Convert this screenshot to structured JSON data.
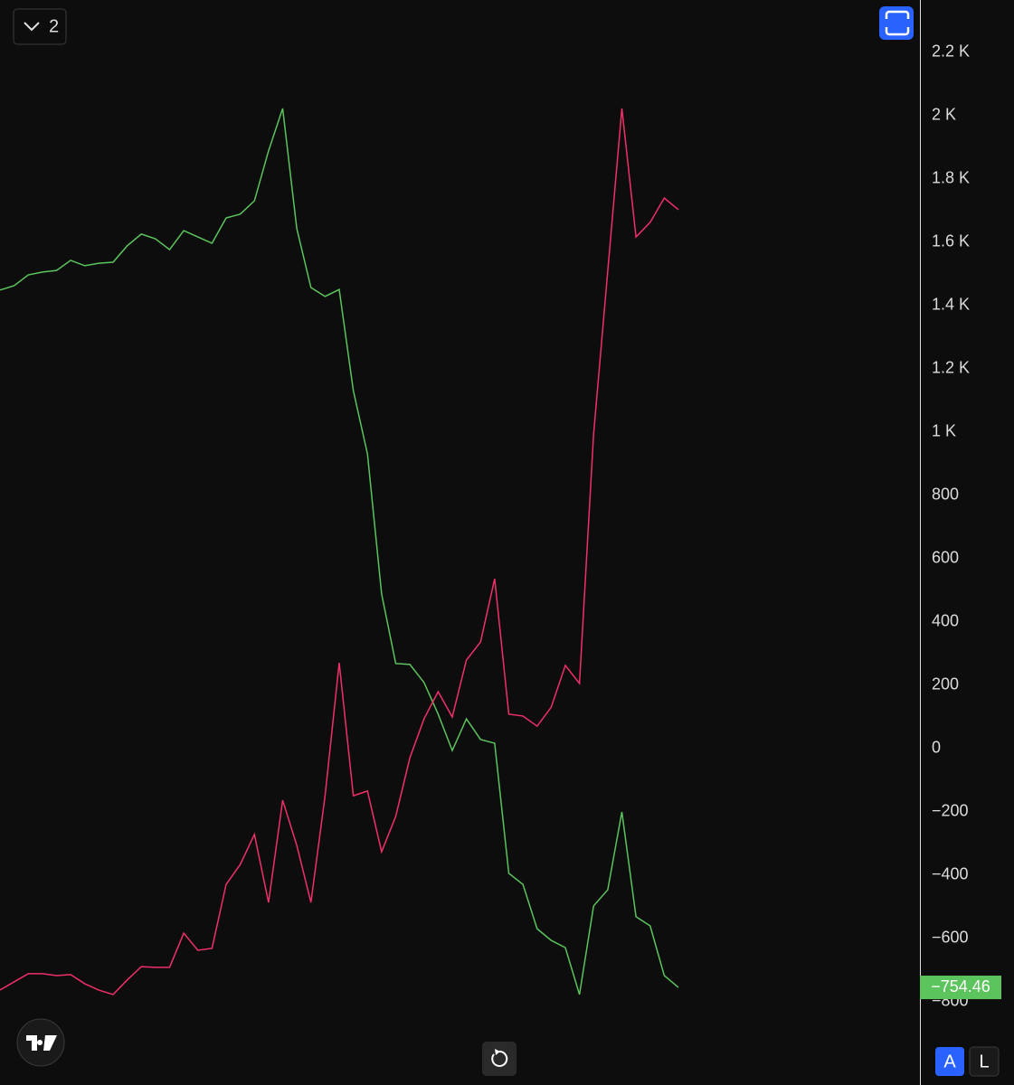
{
  "chart_data": {
    "type": "line",
    "categories": [
      null,
      null,
      null,
      null,
      null,
      null,
      null,
      null,
      null,
      null,
      null,
      null,
      null,
      null,
      null,
      null,
      null,
      null,
      null,
      null,
      null,
      null,
      null,
      null,
      null,
      null,
      null,
      null,
      null,
      null,
      null,
      null,
      null,
      null,
      null,
      null,
      null,
      null,
      null,
      null,
      null,
      null,
      null,
      null,
      null,
      null,
      null,
      null,
      null
    ],
    "series": [
      {
        "color": "#5cc45c",
        "values": [
          1449,
          1463,
          1497,
          1506,
          1511,
          1543,
          1526,
          1534,
          1537,
          1589,
          1626,
          1611,
          1577,
          1637,
          1617,
          1597,
          1677,
          1689,
          1731,
          1889,
          2023,
          1643,
          1457,
          1429,
          1451,
          1131,
          931,
          489,
          269,
          266,
          209,
          109,
          -6,
          94,
          29,
          17,
          -394,
          -429,
          -569,
          -606,
          -629,
          -777,
          -497,
          -446,
          -200,
          -531,
          -560,
          -717,
          -754.46
        ]
      },
      {
        "color": "#f0306a",
        "values": [
          -763,
          -737,
          -711,
          -711,
          -717,
          -714,
          -743,
          -763,
          -777,
          -731,
          -689,
          -691,
          -691,
          -583,
          -637,
          -631,
          -429,
          -366,
          -271,
          -486,
          -163,
          -306,
          -486,
          -149,
          271,
          -149,
          -134,
          -326,
          -214,
          -29,
          94,
          180,
          100,
          280,
          337,
          537,
          109,
          103,
          71,
          131,
          263,
          206,
          994,
          1509,
          2023,
          1617,
          1663,
          1740,
          1703
        ]
      }
    ],
    "last_value": {
      "value": -754.46,
      "label": "−754.46"
    },
    "ylim": [
      -1062.9,
      2365.7
    ],
    "yticks": [
      {
        "value": -800,
        "label": "−800"
      },
      {
        "value": -600,
        "label": "−600"
      },
      {
        "value": -400,
        "label": "−400"
      },
      {
        "value": -200,
        "label": "−200"
      },
      0,
      200,
      400,
      600,
      800,
      {
        "value": 1000,
        "label": "1 K"
      },
      {
        "value": 1200,
        "label": "1.2 K"
      },
      {
        "value": 1400,
        "label": "1.4 K"
      },
      {
        "value": 1600,
        "label": "1.6 K"
      },
      {
        "value": 1800,
        "label": "1.8 K"
      },
      {
        "value": 2000,
        "label": "2 K"
      },
      {
        "value": 2200,
        "label": "2.2 K"
      }
    ],
    "grid": false
  },
  "ui": {
    "series_count": 2,
    "auto_button": "A",
    "log_button": "L"
  }
}
